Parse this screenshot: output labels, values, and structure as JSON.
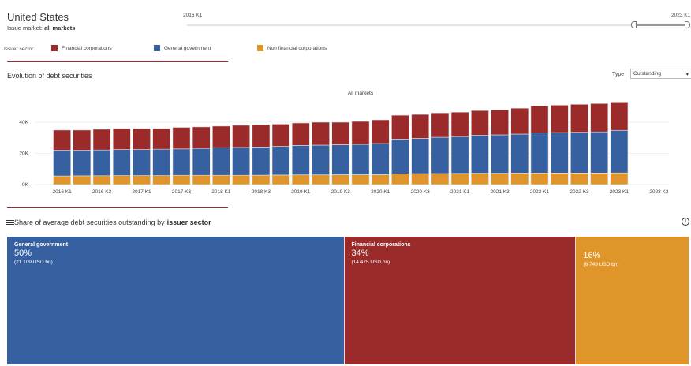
{
  "header": {
    "country": "United States",
    "market_prefix": "Issue market: ",
    "market_value": "all markets"
  },
  "slider": {
    "start_label": "2016 K1",
    "end_label": "2023 K1"
  },
  "legend": {
    "label": "Issuer sector:",
    "items": [
      {
        "name": "Financial corporations",
        "color": "#9b2b2b"
      },
      {
        "name": "General government",
        "color": "#3660a0"
      },
      {
        "name": "Non financial corporations",
        "color": "#e0952b"
      }
    ]
  },
  "evolution": {
    "title": "Evolution of debt securities",
    "type_label": "Type",
    "type_value": "Outstanding"
  },
  "chart_data": {
    "type": "bar",
    "stacked": true,
    "title": "All markets",
    "xlabel": "",
    "ylabel": "",
    "ylim": [
      0,
      55000
    ],
    "yticks": [
      0,
      20000,
      40000
    ],
    "ytick_labels": [
      "0K",
      "20K",
      "40K"
    ],
    "grid": true,
    "categories": [
      "2016 K1",
      "2016 K2",
      "2016 K3",
      "2016 K4",
      "2017 K1",
      "2017 K2",
      "2017 K3",
      "2017 K4",
      "2018 K1",
      "2018 K2",
      "2018 K3",
      "2018 K4",
      "2019 K1",
      "2019 K2",
      "2019 K3",
      "2019 K4",
      "2020 K1",
      "2020 K2",
      "2020 K3",
      "2020 K4",
      "2021 K1",
      "2021 K2",
      "2021 K3",
      "2021 K4",
      "2022 K1",
      "2022 K2",
      "2022 K3",
      "2022 K4",
      "2023 K1",
      "2023 K2",
      "2023 K3"
    ],
    "xtick_labels": [
      "2016 K1",
      "2016 K3",
      "2017 K1",
      "2017 K3",
      "2018 K1",
      "2018 K3",
      "2019 K1",
      "2019 K3",
      "2020 K1",
      "2020 K3",
      "2021 K1",
      "2021 K3",
      "2022 K1",
      "2022 K3",
      "2023 K1",
      "2023 K3"
    ],
    "series": [
      {
        "name": "Non financial corporations",
        "color": "#e0952b",
        "values": [
          5500,
          5600,
          5700,
          5800,
          5800,
          5800,
          6000,
          6000,
          6000,
          6000,
          6000,
          6100,
          6200,
          6200,
          6300,
          6300,
          6400,
          6900,
          7000,
          7100,
          7200,
          7300,
          7300,
          7400,
          7400,
          7400,
          7400,
          7400,
          7500,
          null,
          null
        ]
      },
      {
        "name": "General government",
        "color": "#3660a0",
        "values": [
          16500,
          16400,
          16500,
          16700,
          16700,
          16900,
          16900,
          17200,
          17700,
          17800,
          18100,
          18400,
          18900,
          19100,
          19300,
          19500,
          19900,
          22200,
          22600,
          23200,
          23600,
          24300,
          24600,
          25000,
          25900,
          26000,
          26200,
          26400,
          27300,
          null,
          null
        ]
      },
      {
        "name": "Financial corporations",
        "color": "#9b2b2b",
        "values": [
          13000,
          13000,
          13300,
          13500,
          13500,
          13300,
          13800,
          13800,
          13800,
          14200,
          14400,
          14300,
          14400,
          14700,
          14400,
          14700,
          15200,
          15400,
          15400,
          15700,
          15700,
          15900,
          16100,
          16600,
          17200,
          17600,
          17900,
          18200,
          18200,
          null,
          null
        ]
      }
    ]
  },
  "share": {
    "title_prefix": "Share of average debt securities outstanding by",
    "title_bold": "issuer sector",
    "cells": [
      {
        "name": "General government",
        "pct": "50%",
        "value": "(21 109 USD bn)",
        "color": "#3660a0",
        "share": 50
      },
      {
        "name": "Financial corporations",
        "pct": "34%",
        "value": "(14 475 USD bn)",
        "color": "#9b2b2b",
        "share": 34
      },
      {
        "name": "",
        "pct": "16%",
        "value": "(6 749 USD bn)",
        "color": "#e0952b",
        "share": 16
      }
    ]
  }
}
